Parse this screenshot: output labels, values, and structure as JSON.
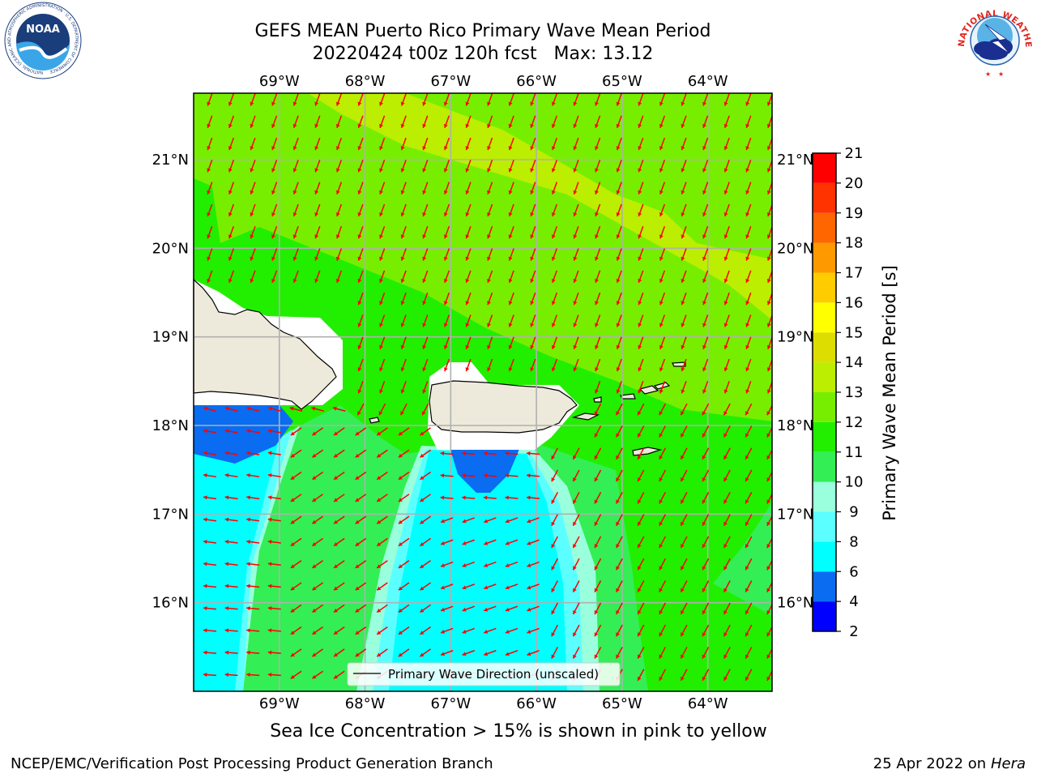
{
  "title": {
    "line1": "GEFS MEAN Puerto Rico Primary Wave Mean Period",
    "line2": "20220424 t00z 120h fcst   Max: 13.12"
  },
  "logos": {
    "left": {
      "icon": "noaa-logo-icon",
      "text": "NOAA",
      "ring_text": "NATIONAL OCEANIC AND ATMOSPHERIC ADMINISTRATION · U.S. DEPARTMENT OF COMMERCE"
    },
    "right": {
      "icon": "nws-logo-icon",
      "ring_text": "NATIONAL WEATHER SERVICE"
    }
  },
  "map": {
    "lon_ticks": [
      "69°W",
      "68°W",
      "67°W",
      "66°W",
      "65°W",
      "64°W"
    ],
    "lat_ticks": [
      "21°N",
      "20°N",
      "19°N",
      "18°N",
      "17°N",
      "16°N"
    ],
    "lon_range": [
      -70.0,
      -63.25
    ],
    "lat_range": [
      15.0,
      21.75
    ],
    "grid": true,
    "arrow_color": "#ff0000",
    "land_color": "#eeeadb",
    "legend_label": "Primary Wave Direction (unscaled)",
    "legend_position": "bottom-center"
  },
  "colorbar": {
    "title": "Primary Wave Mean Period [s]",
    "levels": [
      2,
      4,
      6,
      8,
      9,
      10,
      11,
      12,
      13,
      14,
      15,
      16,
      17,
      18,
      19,
      20,
      21
    ],
    "colors": [
      "#0000ff",
      "#0a6cf0",
      "#00ffff",
      "#5cffff",
      "#99ffdd",
      "#33ee55",
      "#22ee00",
      "#77ee00",
      "#bbee00",
      "#dddd00",
      "#ffff00",
      "#ffcc00",
      "#ff9900",
      "#ff6600",
      "#ff3300",
      "#ff0000"
    ]
  },
  "caption": "Sea Ice Concentration > 15% is shown in pink to yellow",
  "footer": {
    "left": "NCEP/EMC/Verification Post Processing Product Generation Branch",
    "right_date": "25 Apr 2022 on ",
    "right_host": "Hera"
  }
}
